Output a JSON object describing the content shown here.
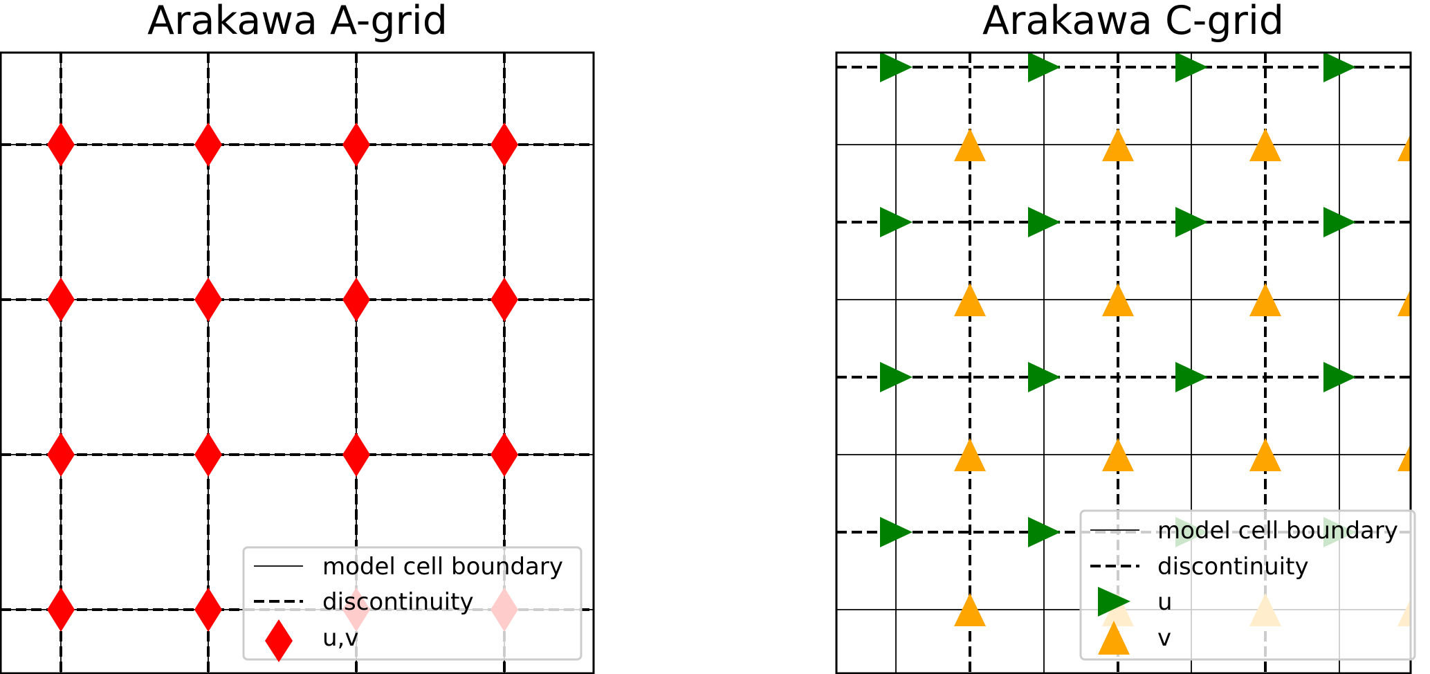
{
  "panel_a": {
    "title": "Arakawa A-grid",
    "legend": {
      "cell_boundary_label": "model cell boundary",
      "discontinuity_label": "discontinuity",
      "marker_label": "u,v"
    }
  },
  "panel_c": {
    "title": "Arakawa C-grid",
    "legend": {
      "cell_boundary_label": "model cell boundary",
      "discontinuity_label": "discontinuity",
      "u_label": "u",
      "v_label": "v"
    }
  },
  "colors": {
    "uv_marker": "#ff0000",
    "u_marker": "#008000",
    "v_marker": "#ffa500",
    "grid_lines": "#000000"
  },
  "icons": {
    "uv_marker": "red-diamond-icon",
    "u_marker": "green-right-triangle-icon",
    "v_marker": "orange-up-triangle-icon"
  }
}
